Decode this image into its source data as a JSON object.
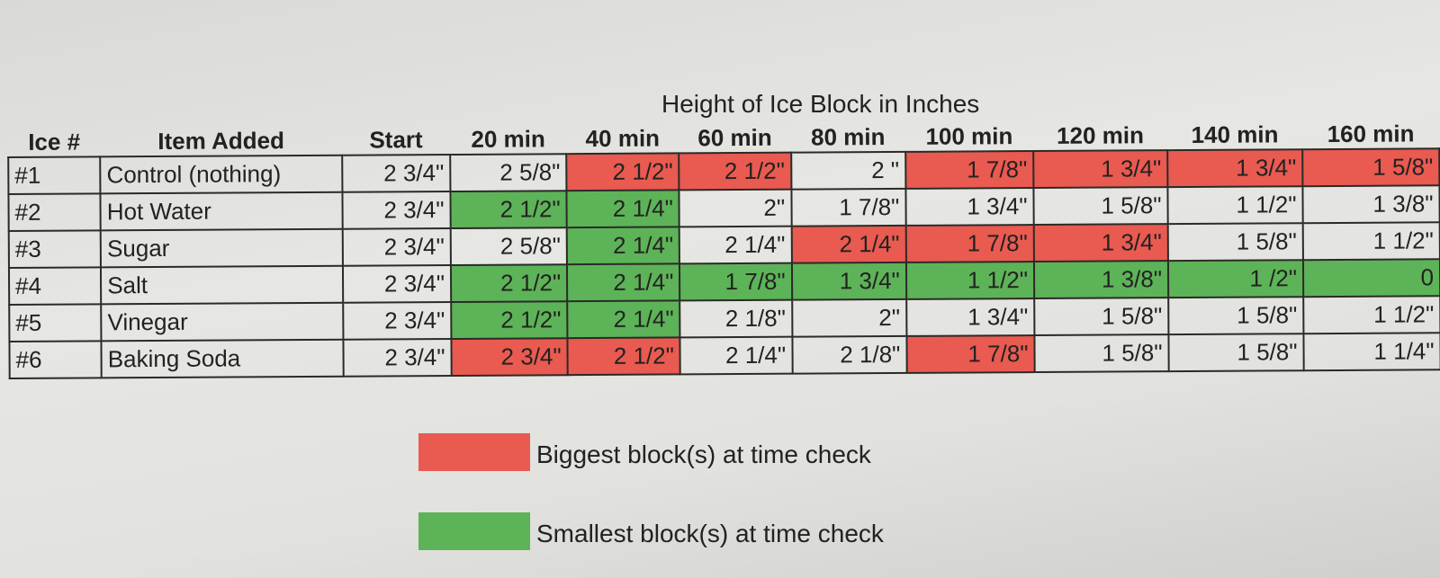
{
  "title": "Height of Ice Block in Inches",
  "columns": [
    "Ice #",
    "Item Added",
    "Start",
    "20 min",
    "40 min",
    "60 min",
    "80 min",
    "100 min",
    "120 min",
    "140 min",
    "160 min"
  ],
  "rows": [
    {
      "id": "#1",
      "item": "Control (nothing)",
      "values": [
        "2 3/4\"",
        "2 5/8\"",
        "2 1/2\"",
        "2 1/2\"",
        "2 \"",
        "1 7/8\"",
        "1 3/4\"",
        "1 3/4\"",
        "1 5/8\""
      ],
      "highlight": [
        "none",
        "none",
        "red",
        "red",
        "none",
        "red",
        "red",
        "red",
        "red"
      ]
    },
    {
      "id": "#2",
      "item": "Hot Water",
      "values": [
        "2 3/4\"",
        "2 1/2\"",
        "2 1/4\"",
        "2\"",
        "1 7/8\"",
        "1 3/4\"",
        "1 5/8\"",
        "1 1/2\"",
        "1 3/8\""
      ],
      "highlight": [
        "none",
        "green",
        "green",
        "none",
        "none",
        "none",
        "none",
        "none",
        "none"
      ]
    },
    {
      "id": "#3",
      "item": "Sugar",
      "values": [
        "2 3/4\"",
        "2 5/8\"",
        "2 1/4\"",
        "2 1/4\"",
        "2 1/4\"",
        "1 7/8\"",
        "1 3/4\"",
        "1 5/8\"",
        "1 1/2\""
      ],
      "highlight": [
        "none",
        "none",
        "green",
        "none",
        "red",
        "red",
        "red",
        "none",
        "none"
      ]
    },
    {
      "id": "#4",
      "item": "Salt",
      "values": [
        "2 3/4\"",
        "2 1/2\"",
        "2 1/4\"",
        "1 7/8\"",
        "1 3/4\"",
        "1 1/2\"",
        "1 3/8\"",
        "1 /2\"",
        "0"
      ],
      "highlight": [
        "none",
        "green",
        "green",
        "green",
        "green",
        "green",
        "green",
        "green",
        "green"
      ]
    },
    {
      "id": "#5",
      "item": "Vinegar",
      "values": [
        "2 3/4\"",
        "2 1/2\"",
        "2 1/4\"",
        "2 1/8\"",
        "2\"",
        "1 3/4\"",
        "1 5/8\"",
        "1 5/8\"",
        "1 1/2\""
      ],
      "highlight": [
        "none",
        "green",
        "green",
        "none",
        "none",
        "none",
        "none",
        "none",
        "none"
      ]
    },
    {
      "id": "#6",
      "item": "Baking Soda",
      "values": [
        "2 3/4\"",
        "2 3/4\"",
        "2 1/2\"",
        "2 1/4\"",
        "2 1/8\"",
        "1 7/8\"",
        "1 5/8\"",
        "1 5/8\"",
        "1 1/4\""
      ],
      "highlight": [
        "none",
        "red",
        "red",
        "none",
        "none",
        "red",
        "none",
        "none",
        "none"
      ]
    }
  ],
  "legend": [
    {
      "color": "#e95a50",
      "label": "Biggest block(s) at time check"
    },
    {
      "color": "#5db357",
      "label": "Smallest block(s) at time check"
    }
  ]
}
